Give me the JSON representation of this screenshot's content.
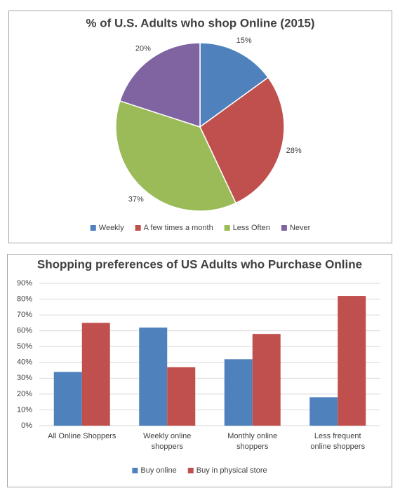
{
  "chart_data": [
    {
      "type": "pie",
      "title": "% of U.S. Adults who shop Online (2015)",
      "categories": [
        "Weekly",
        "A few times a month",
        "Less Often",
        "Never"
      ],
      "values": [
        15,
        28,
        37,
        20
      ],
      "value_labels": [
        "15%",
        "28%",
        "37%",
        "20%"
      ],
      "colors": [
        "#4f81bd",
        "#c0504d",
        "#9bbb59",
        "#8064a2"
      ],
      "legend": "bottom"
    },
    {
      "type": "bar",
      "title": "Shopping preferences of US Adults who Purchase Online",
      "categories": [
        "All Online Shoppers",
        "Weekly online shoppers",
        "Monthly online shoppers",
        "Less frequent online shoppers"
      ],
      "series": [
        {
          "name": "Buy online",
          "color": "#4f81bd",
          "values": [
            34,
            62,
            42,
            18
          ]
        },
        {
          "name": "Buy in physical store",
          "color": "#c0504d",
          "values": [
            65,
            37,
            58,
            82
          ]
        }
      ],
      "ylim": [
        0,
        90
      ],
      "yticks": [
        {
          "value": 0,
          "label": "0%"
        },
        {
          "value": 10,
          "label": "10%"
        },
        {
          "value": 20,
          "label": "20%"
        },
        {
          "value": 30,
          "label": "30%"
        },
        {
          "value": 40,
          "label": "40%"
        },
        {
          "value": 50,
          "label": "50%"
        },
        {
          "value": 60,
          "label": "60%"
        },
        {
          "value": 70,
          "label": "70%"
        },
        {
          "value": 80,
          "label": "80%"
        },
        {
          "value": 90,
          "label": "90%"
        }
      ],
      "grid": true,
      "legend": "bottom"
    }
  ]
}
